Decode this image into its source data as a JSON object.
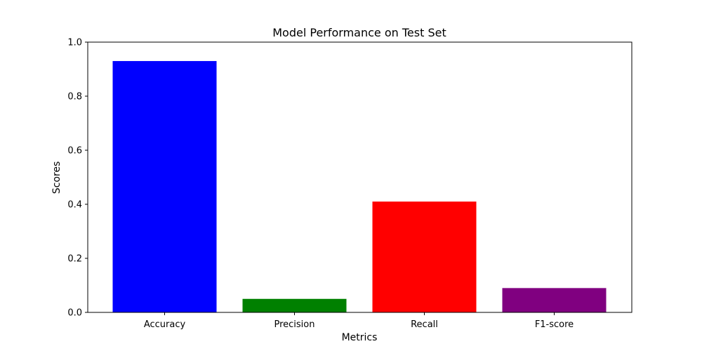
{
  "chart_data": {
    "type": "bar",
    "title": "Model Performance on Test Set",
    "xlabel": "Metrics",
    "ylabel": "Scores",
    "categories": [
      "Accuracy",
      "Precision",
      "Recall",
      "F1-score"
    ],
    "values": [
      0.93,
      0.05,
      0.41,
      0.09
    ],
    "colors": [
      "#0000ff",
      "#008000",
      "#ff0000",
      "#800080"
    ],
    "ylim": [
      0,
      1.0
    ],
    "yticks": [
      "0.0",
      "0.2",
      "0.4",
      "0.6",
      "0.8",
      "1.0"
    ],
    "grid": false,
    "legend": "none"
  }
}
